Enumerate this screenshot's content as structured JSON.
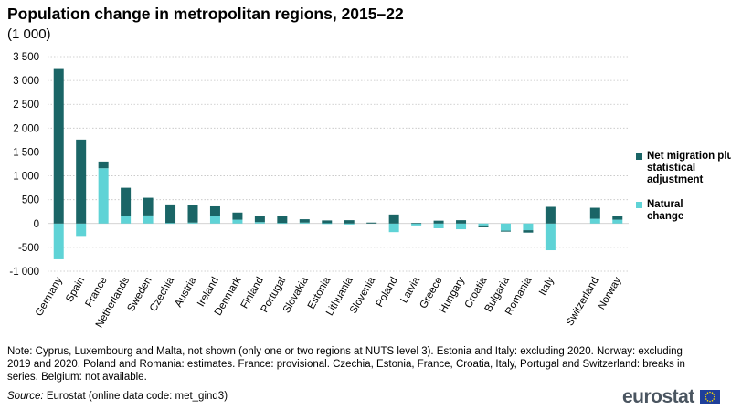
{
  "chart_data": {
    "type": "bar",
    "stacked": true,
    "title": "Population change in metropolitan regions, 2015–22",
    "subtitle": "(1 000)",
    "ylim": [
      -1000,
      3500
    ],
    "yticks": [
      -1000,
      -500,
      0,
      500,
      1000,
      1500,
      2000,
      2500,
      3000,
      3500
    ],
    "ytick_labels": [
      "-1 000",
      "-500",
      "0",
      "500",
      "1 000",
      "1 500",
      "2 000",
      "2 500",
      "3 000",
      "3 500"
    ],
    "grid": true,
    "legend_position": "right",
    "categories": [
      "Germany",
      "Spain",
      "France",
      "Netherlands",
      "Sweden",
      "Czechia",
      "Austria",
      "Ireland",
      "Denmark",
      "Finland",
      "Portugal",
      "Slovakia",
      "Estonia",
      "Lithuania",
      "Slovenia",
      "Poland",
      "Latvia",
      "Greece",
      "Hungary",
      "Croatia",
      "Bulgaria",
      "Romania",
      "Italy",
      "",
      "Switzerland",
      "Norway"
    ],
    "series": [
      {
        "name": "Natural change",
        "color": "#5fd3d6",
        "values": [
          -750,
          -260,
          1160,
          160,
          170,
          10,
          20,
          150,
          80,
          30,
          10,
          20,
          5,
          -20,
          0,
          -180,
          -40,
          -100,
          -120,
          -40,
          -150,
          -140,
          -560,
          null,
          100,
          80
        ]
      },
      {
        "name": "Net migration plus statistical adjustment",
        "color": "#1a6566",
        "values": [
          3240,
          1760,
          140,
          590,
          370,
          390,
          370,
          210,
          150,
          130,
          140,
          70,
          60,
          70,
          20,
          190,
          10,
          60,
          70,
          -40,
          -20,
          -50,
          350,
          null,
          230,
          70
        ]
      }
    ]
  },
  "legend": {
    "migration_label": "Net migration plus statistical adjustment",
    "natural_label": "Natural change"
  },
  "note": "Note: Cyprus, Luxembourg and Malta, not shown (only one or two regions at NUTS level 3). Estonia and Italy: excluding 2020. Norway: excluding 2019 and 2020. Poland and Romania: estimates. France: provisional. Czechia, Estonia, France, Croatia, Italy, Portugal and Switzerland: breaks in series. Belgium: not available.",
  "source": {
    "label": "Source:",
    "text": "Eurostat (online data code: met_gind3)"
  },
  "brand": "eurostat"
}
